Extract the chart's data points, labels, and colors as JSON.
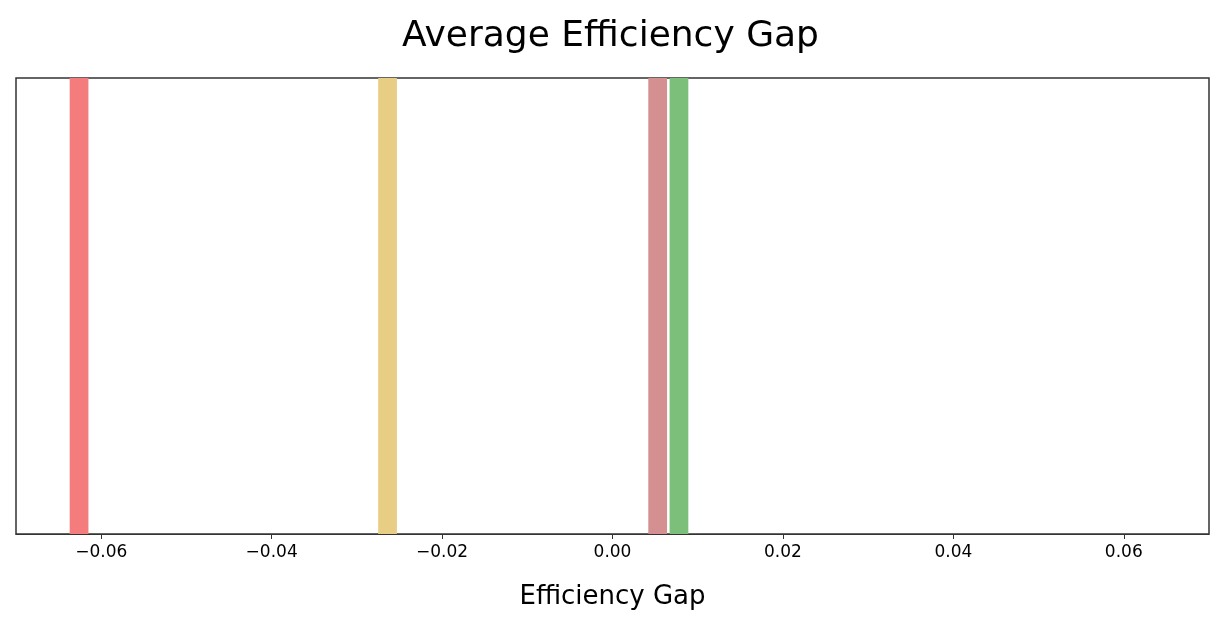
{
  "chart_data": {
    "type": "bar",
    "orientation": "horizontal",
    "title": "Average Efficiency Gap",
    "xlabel": "Efficiency Gap",
    "categories": [
      null
    ],
    "xlim": [
      -0.07,
      0.07
    ],
    "xticks": [
      {
        "value": -0.06,
        "label": "−0.06"
      },
      {
        "value": -0.04,
        "label": "−0.04"
      },
      {
        "value": -0.02,
        "label": "−0.02"
      },
      "0.00",
      "0.02",
      "0.04",
      "0.06"
    ],
    "tick_labels": "x",
    "series": [
      {
        "color": "#f47c7c",
        "base": [
          -0.0637
        ],
        "values": [
          0.0022
        ]
      },
      {
        "color": "#e8cd85",
        "base": [
          -0.0275
        ],
        "values": [
          0.0022
        ]
      },
      {
        "color": "#d49090",
        "base": [
          0.0042
        ],
        "values": [
          0.0022
        ]
      },
      {
        "color": "#7bbf7b",
        "base": [
          0.0067
        ],
        "values": [
          0.0022
        ]
      }
    ]
  }
}
